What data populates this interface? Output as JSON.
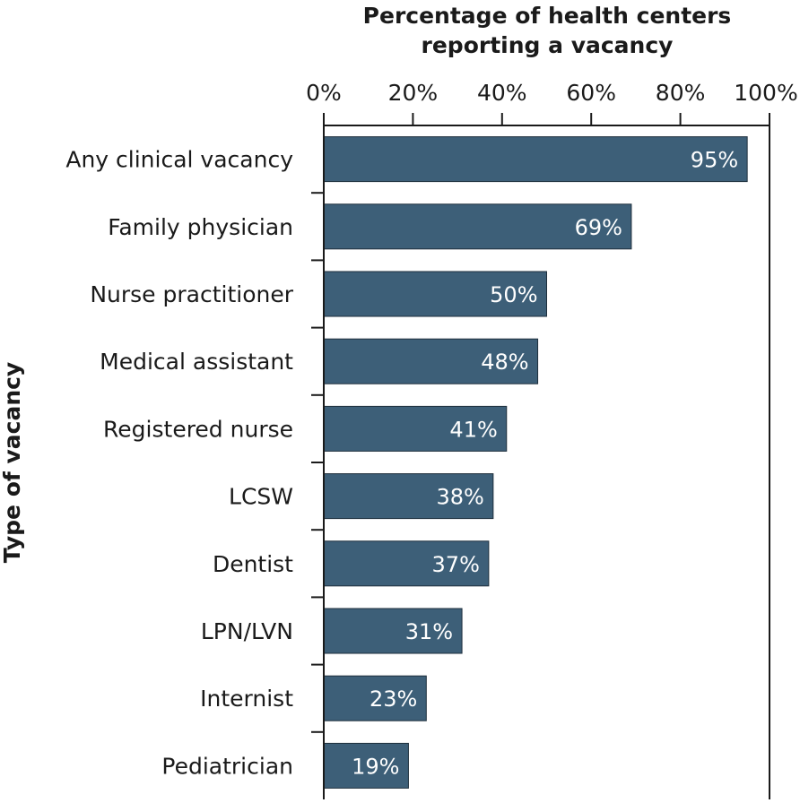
{
  "chart_data": {
    "type": "bar",
    "orientation": "horizontal",
    "title_lines": [
      "Percentage of health centers",
      "reporting a vacancy"
    ],
    "ylabel": "Type of vacancy",
    "xlabel": "",
    "xlim": [
      0,
      100
    ],
    "xticks": [
      "0%",
      "20%",
      "40%",
      "60%",
      "80%",
      "100%"
    ],
    "categories": [
      "Any clinical vacancy",
      "Family physician",
      "Nurse practitioner",
      "Medical assistant",
      "Registered nurse",
      "LCSW",
      "Dentist",
      "LPN/LVN",
      "Internist",
      "Pediatrician"
    ],
    "values": [
      95,
      69,
      50,
      48,
      41,
      38,
      37,
      31,
      23,
      19
    ],
    "value_labels": [
      "95%",
      "69%",
      "50%",
      "48%",
      "41%",
      "38%",
      "37%",
      "31%",
      "23%",
      "19%"
    ],
    "bar_color": "#3d5f78",
    "axis_color": "#1a1a1a",
    "grid": false,
    "legend": "none"
  }
}
